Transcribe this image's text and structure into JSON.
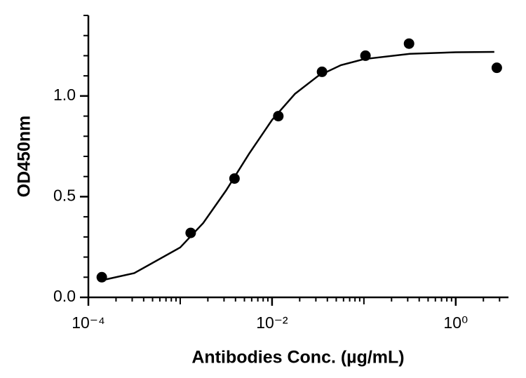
{
  "chart_data": {
    "type": "scatter",
    "x_label": "Antibodies Conc. (µg/mL)",
    "y_label": "OD450nm",
    "log_x": true,
    "xlim": [
      0.0001,
      3.75
    ],
    "ylim": [
      0,
      1.4
    ],
    "xticks": [
      {
        "value": 0.0001,
        "label": "10⁻⁴"
      },
      {
        "value": 0.01,
        "label": "10⁻²"
      },
      {
        "value": 1,
        "label": "10⁰"
      }
    ],
    "yticks": [
      {
        "value": 0,
        "label": "0.0"
      },
      {
        "value": 0.5,
        "label": "0.5"
      },
      {
        "value": 1,
        "label": "1.0"
      }
    ],
    "series": [
      {
        "kind": "points",
        "color": "#000000",
        "x": [
          0.00014,
          0.0013,
          0.0039,
          0.0117,
          0.035,
          0.104,
          0.31,
          2.8
        ],
        "values": [
          0.1,
          0.32,
          0.59,
          0.9,
          1.12,
          1.2,
          1.26,
          1.14
        ]
      },
      {
        "kind": "curve",
        "color": "#000000",
        "x": [
          0.000141,
          0.000316,
          0.001,
          0.00178,
          0.00316,
          0.00562,
          0.01,
          0.0178,
          0.0316,
          0.0562,
          0.1,
          0.316,
          1,
          2.63
        ],
        "values": [
          0.085,
          0.12,
          0.248,
          0.369,
          0.531,
          0.713,
          0.881,
          1.011,
          1.099,
          1.153,
          1.183,
          1.209,
          1.217,
          1.219
        ]
      }
    ]
  }
}
